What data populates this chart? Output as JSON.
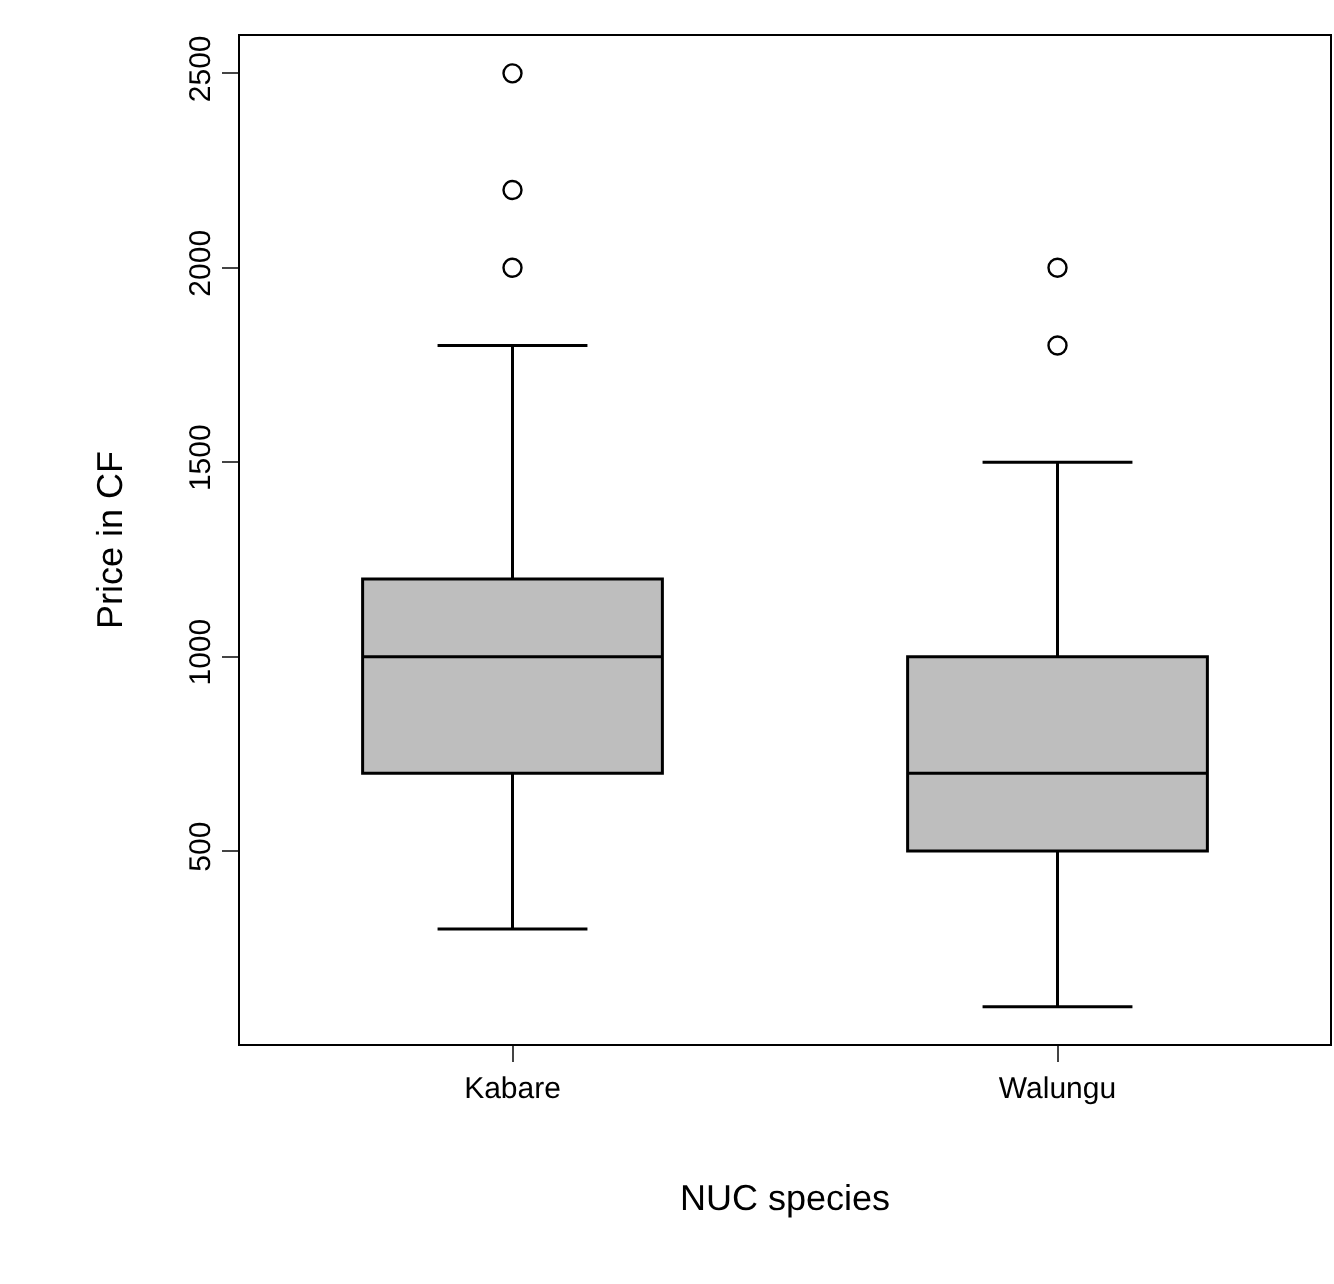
{
  "chart_data": {
    "type": "box",
    "xlabel": "NUC species",
    "ylabel": "Price in CF",
    "categories": [
      "Kabare",
      "Walungu"
    ],
    "boxes": [
      {
        "low": 300,
        "q1": 700,
        "median": 1000,
        "q3": 1200,
        "high": 1800,
        "outliers": [
          2000,
          2200,
          2500
        ]
      },
      {
        "low": 100,
        "q1": 500,
        "median": 700,
        "q3": 1000,
        "high": 1500,
        "outliers": [
          1800,
          2000
        ]
      }
    ],
    "color": "#bebebe",
    "ylim": [
      4,
      2596
    ],
    "yticks": [
      500,
      1000,
      1500,
      2000,
      2500
    ],
    "marker": "circle"
  }
}
